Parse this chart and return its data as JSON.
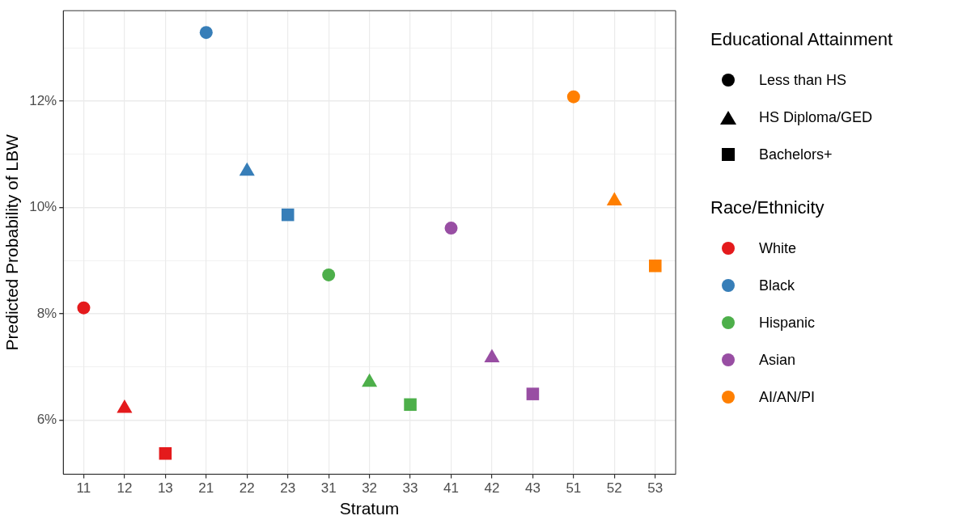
{
  "chart_data": {
    "type": "scatter",
    "xlabel": "Stratum",
    "ylabel": "Predicted Probability of LBW",
    "categories": [
      "11",
      "12",
      "13",
      "21",
      "22",
      "23",
      "31",
      "32",
      "33",
      "41",
      "42",
      "43",
      "51",
      "52",
      "53"
    ],
    "ylim": [
      4.98,
      13.7
    ],
    "yticks": [
      {
        "value": 5,
        "label": null
      },
      {
        "value": 6,
        "label": "6%"
      },
      {
        "value": 7,
        "label": null
      },
      {
        "value": 8,
        "label": "8%"
      },
      {
        "value": 9,
        "label": null
      },
      {
        "value": 10,
        "label": "10%"
      },
      {
        "value": 11,
        "label": null
      },
      {
        "value": 12,
        "label": "12%"
      },
      {
        "value": 13,
        "label": null
      }
    ],
    "grid": true,
    "legend": "right",
    "legend_title": "Educational Attainment",
    "series": [
      {
        "name": "Less than HS",
        "marker": "circle",
        "values": [
          8.11,
          null,
          null,
          13.29,
          null,
          null,
          8.73,
          null,
          null,
          9.61,
          null,
          null,
          12.08,
          null,
          null
        ],
        "colors": [
          "#e41a1c",
          null,
          null,
          "#377eb8",
          null,
          null,
          "#4daf4a",
          null,
          null,
          "#984ea3",
          null,
          null,
          "#ff7f00",
          null,
          null
        ]
      },
      {
        "name": "HS Diploma/GED",
        "marker": "triangle",
        "values": [
          null,
          6.22,
          null,
          null,
          10.68,
          null,
          null,
          6.71,
          null,
          null,
          7.17,
          null,
          null,
          10.12,
          null
        ],
        "colors": [
          null,
          "#e41a1c",
          null,
          null,
          "#377eb8",
          null,
          null,
          "#4daf4a",
          null,
          null,
          "#984ea3",
          null,
          null,
          "#ff7f00",
          null
        ]
      },
      {
        "name": "Bachelors+",
        "marker": "square",
        "values": [
          null,
          null,
          5.37,
          null,
          null,
          9.86,
          null,
          null,
          6.29,
          null,
          null,
          6.49,
          null,
          null,
          8.9
        ],
        "colors": [
          null,
          null,
          "#e41a1c",
          null,
          null,
          "#377eb8",
          null,
          null,
          "#4daf4a",
          null,
          null,
          "#984ea3",
          null,
          null,
          "#ff7f00"
        ]
      },
      {
        "name": "White",
        "color": "#e41a1c",
        "values": [
          null,
          null,
          null,
          null,
          null,
          null,
          null,
          null,
          null,
          null,
          null,
          null,
          null,
          null,
          null
        ]
      },
      {
        "name": "Black",
        "color": "#377eb8",
        "values": [
          null,
          null,
          null,
          null,
          null,
          null,
          null,
          null,
          null,
          null,
          null,
          null,
          null,
          null,
          null
        ]
      },
      {
        "name": "Hispanic",
        "color": "#4daf4a",
        "values": [
          null,
          null,
          null,
          null,
          null,
          null,
          null,
          null,
          null,
          null,
          null,
          null,
          null,
          null,
          null
        ]
      },
      {
        "name": "Asian",
        "color": "#984ea3",
        "values": [
          null,
          null,
          null,
          null,
          null,
          null,
          null,
          null,
          null,
          null,
          null,
          null,
          null,
          null,
          null
        ]
      },
      {
        "name": "AI/AN/PI",
        "color": "#ff7f00",
        "values": [
          null,
          null,
          null,
          null,
          null,
          null,
          null,
          null,
          null,
          null,
          null,
          null,
          null,
          null,
          null
        ]
      }
    ],
    "annotations": [
      "Race/Ethnicity"
    ]
  }
}
